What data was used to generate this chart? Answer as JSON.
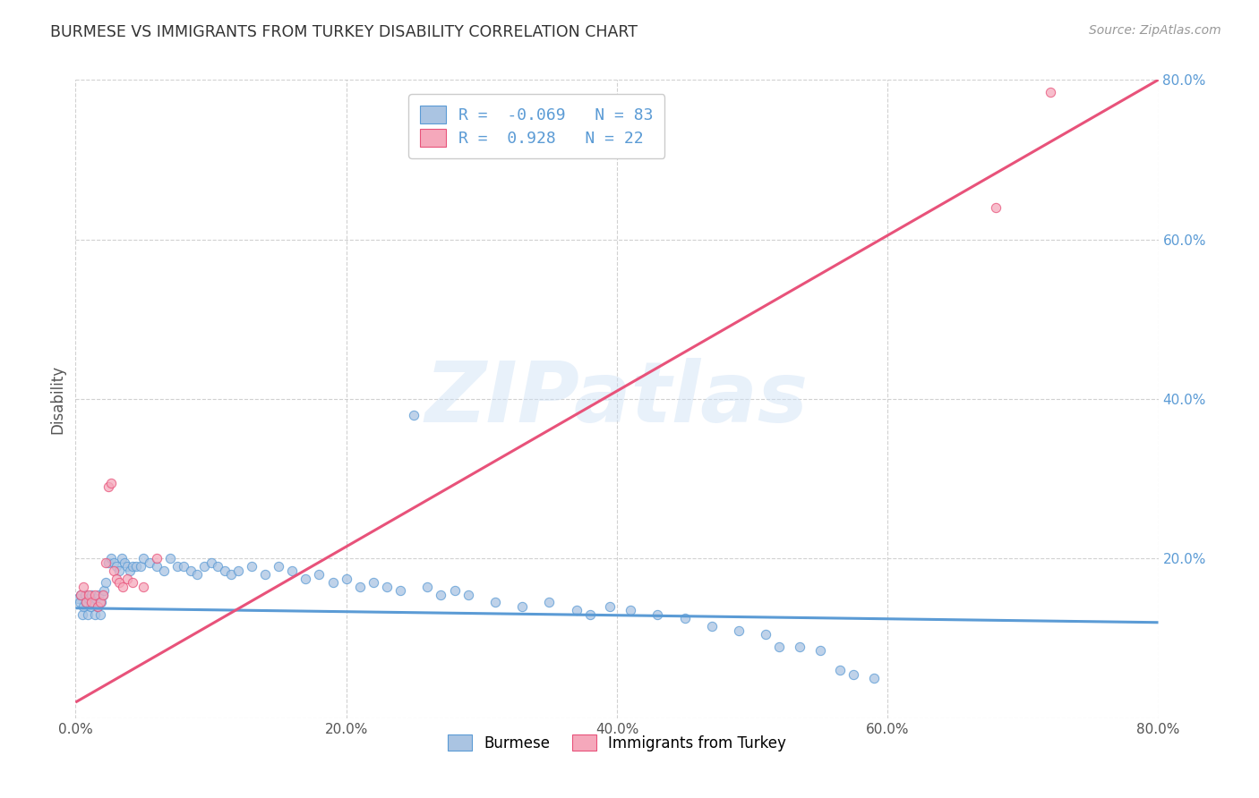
{
  "title": "BURMESE VS IMMIGRANTS FROM TURKEY DISABILITY CORRELATION CHART",
  "source": "Source: ZipAtlas.com",
  "ylabel": "Disability",
  "watermark_text": "ZIPatlas",
  "xlim": [
    0.0,
    0.8
  ],
  "ylim": [
    0.0,
    0.8
  ],
  "xticks": [
    0.0,
    0.2,
    0.4,
    0.6,
    0.8
  ],
  "yticks": [
    0.0,
    0.2,
    0.4,
    0.6,
    0.8
  ],
  "xticklabels": [
    "0.0%",
    "20.0%",
    "40.0%",
    "60.0%",
    "80.0%"
  ],
  "yticklabels": [
    "",
    "20.0%",
    "40.0%",
    "60.0%",
    "80.0%"
  ],
  "burmese_color": "#aac4e2",
  "turkey_color": "#f5a8bb",
  "burmese_edge_color": "#5b9bd5",
  "turkey_edge_color": "#e8527a",
  "burmese_line_color": "#5b9bd5",
  "turkey_line_color": "#e8527a",
  "R_burmese": -0.069,
  "N_burmese": 83,
  "R_turkey": 0.928,
  "N_turkey": 22,
  "burmese_trendline": [
    0.0,
    0.8,
    0.138,
    0.12
  ],
  "turkey_trendline": [
    0.0,
    0.8,
    0.02,
    0.8
  ],
  "burmese_scatter_x": [
    0.002,
    0.003,
    0.004,
    0.005,
    0.006,
    0.007,
    0.008,
    0.009,
    0.01,
    0.011,
    0.012,
    0.013,
    0.014,
    0.015,
    0.016,
    0.017,
    0.018,
    0.019,
    0.02,
    0.021,
    0.022,
    0.024,
    0.026,
    0.028,
    0.03,
    0.032,
    0.034,
    0.036,
    0.038,
    0.04,
    0.042,
    0.045,
    0.048,
    0.05,
    0.055,
    0.06,
    0.065,
    0.07,
    0.075,
    0.08,
    0.085,
    0.09,
    0.095,
    0.1,
    0.105,
    0.11,
    0.115,
    0.12,
    0.13,
    0.14,
    0.15,
    0.16,
    0.17,
    0.18,
    0.19,
    0.2,
    0.21,
    0.22,
    0.23,
    0.24,
    0.25,
    0.26,
    0.27,
    0.28,
    0.29,
    0.31,
    0.33,
    0.35,
    0.37,
    0.38,
    0.395,
    0.41,
    0.43,
    0.45,
    0.47,
    0.49,
    0.51,
    0.52,
    0.535,
    0.55,
    0.565,
    0.575,
    0.59
  ],
  "burmese_scatter_y": [
    0.15,
    0.145,
    0.155,
    0.13,
    0.14,
    0.155,
    0.145,
    0.13,
    0.15,
    0.14,
    0.155,
    0.145,
    0.13,
    0.15,
    0.14,
    0.155,
    0.13,
    0.145,
    0.155,
    0.16,
    0.17,
    0.195,
    0.2,
    0.195,
    0.19,
    0.185,
    0.2,
    0.195,
    0.19,
    0.185,
    0.19,
    0.19,
    0.19,
    0.2,
    0.195,
    0.19,
    0.185,
    0.2,
    0.19,
    0.19,
    0.185,
    0.18,
    0.19,
    0.195,
    0.19,
    0.185,
    0.18,
    0.185,
    0.19,
    0.18,
    0.19,
    0.185,
    0.175,
    0.18,
    0.17,
    0.175,
    0.165,
    0.17,
    0.165,
    0.16,
    0.38,
    0.165,
    0.155,
    0.16,
    0.155,
    0.145,
    0.14,
    0.145,
    0.135,
    0.13,
    0.14,
    0.135,
    0.13,
    0.125,
    0.115,
    0.11,
    0.105,
    0.09,
    0.09,
    0.085,
    0.06,
    0.055,
    0.05
  ],
  "turkey_scatter_x": [
    0.004,
    0.006,
    0.008,
    0.01,
    0.012,
    0.014,
    0.016,
    0.018,
    0.02,
    0.022,
    0.024,
    0.026,
    0.028,
    0.03,
    0.032,
    0.035,
    0.038,
    0.042,
    0.05,
    0.06,
    0.68,
    0.72
  ],
  "turkey_scatter_y": [
    0.155,
    0.165,
    0.145,
    0.155,
    0.145,
    0.155,
    0.14,
    0.145,
    0.155,
    0.195,
    0.29,
    0.295,
    0.185,
    0.175,
    0.17,
    0.165,
    0.175,
    0.17,
    0.165,
    0.2,
    0.64,
    0.785
  ]
}
